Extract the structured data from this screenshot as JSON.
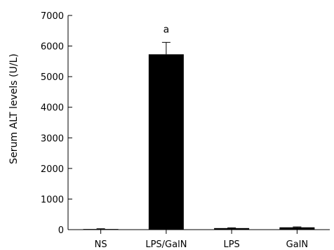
{
  "chart_data": {
    "type": "bar",
    "categories": [
      "NS",
      "LPS/GalN",
      "LPS",
      "GalN"
    ],
    "values": [
      20,
      5730,
      50,
      75
    ],
    "errors": [
      10,
      390,
      10,
      15
    ],
    "ylabel": "Serum ALT levels (U/L)",
    "xlabel": "",
    "ylim": [
      0,
      7000
    ],
    "yticks": [
      0,
      1000,
      2000,
      3000,
      4000,
      5000,
      6000,
      7000
    ],
    "grid": false,
    "bar_color": "#000000",
    "annotations": [
      {
        "category": "LPS/GalN",
        "text": "a"
      }
    ]
  }
}
